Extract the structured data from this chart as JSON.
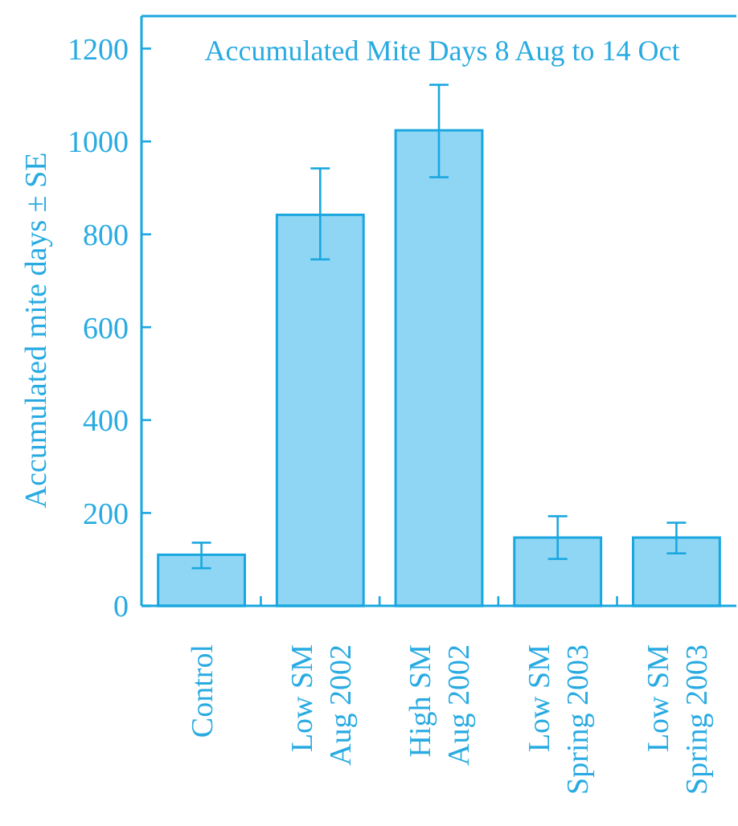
{
  "chart_data": {
    "type": "bar",
    "title": "Accumulated Mite Days 8 Aug to 14 Oct",
    "ylabel": "Accumulated mite days ± SE",
    "categories": [
      "Control",
      "Low SM\nAug 2002",
      "High SM\nAug 2002",
      "Low SM\nSpring 2003",
      "Low SM\nSpring 2003"
    ],
    "values": [
      110,
      842,
      1024,
      147,
      147
    ],
    "errors": [
      [
        81,
        136
      ],
      [
        746,
        942
      ],
      [
        923,
        1122
      ],
      [
        101,
        193
      ],
      [
        113,
        179
      ]
    ],
    "color": "#8fd6f5",
    "ylim": [
      0,
      1270
    ],
    "yticks": [
      0,
      200,
      400,
      600,
      800,
      1000,
      1200
    ],
    "grid": false
  }
}
